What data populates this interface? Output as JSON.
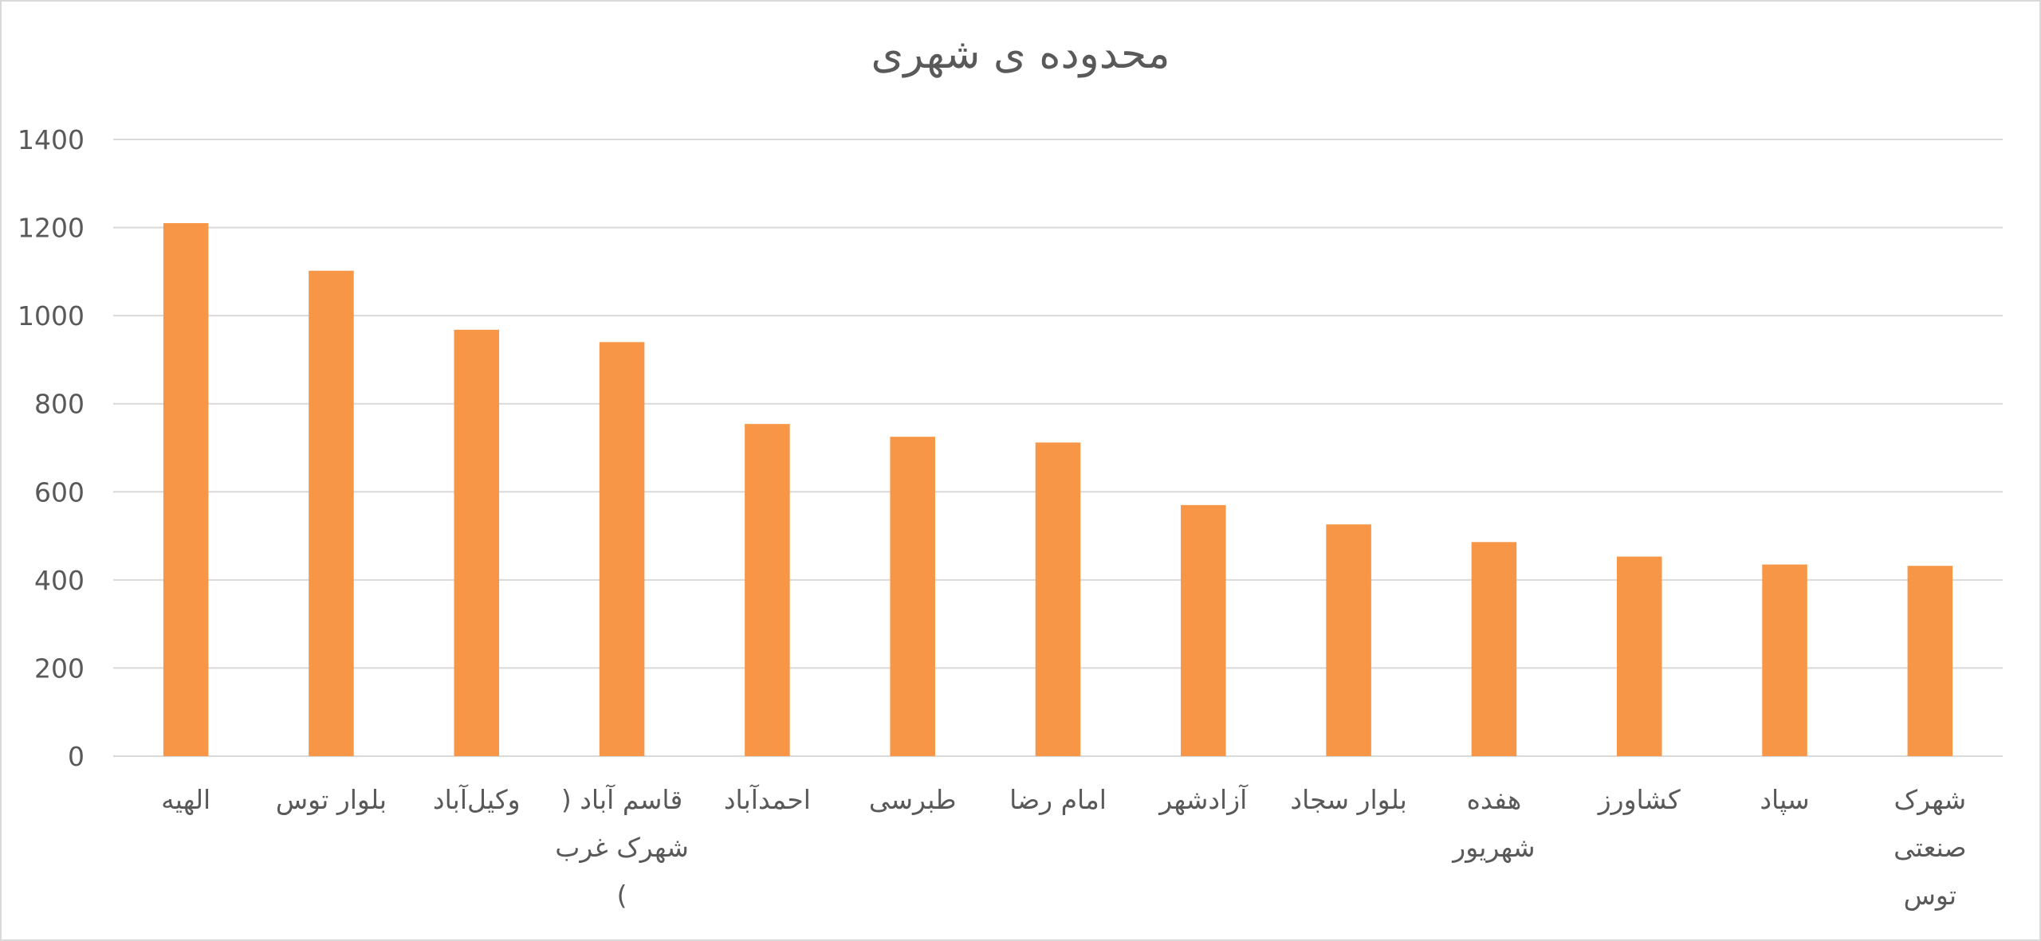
{
  "chart_data": {
    "type": "bar",
    "title": "محدوده ی شهری",
    "xlabel": "",
    "ylabel": "",
    "ylim": [
      0,
      1400
    ],
    "yticks": [
      0,
      200,
      400,
      600,
      800,
      1000,
      1200,
      1400
    ],
    "grid": true,
    "legend": "none",
    "bar_color": "#F79646",
    "categories": [
      "الهیه",
      "بلوار توس",
      "وکیل‌آباد",
      "قاسم آباد ( شهرک غرب )",
      "احمدآباد",
      "طبرسی",
      "امام رضا",
      "آزادشهر",
      "بلوار سجاد",
      "هفده شهریور",
      "کشاورز",
      "سپاد",
      "شهرک صنعتی توس"
    ],
    "category_label_lines": [
      [
        "الهیه"
      ],
      [
        "بلوار توس"
      ],
      [
        "وکیل‌آباد"
      ],
      [
        "قاسم آباد (",
        "شهرک غرب",
        ")"
      ],
      [
        "احمدآباد"
      ],
      [
        "طبرسی"
      ],
      [
        "امام رضا"
      ],
      [
        "آزادشهر"
      ],
      [
        "بلوار سجاد"
      ],
      [
        "هفده",
        "شهریور"
      ],
      [
        "کشاورز"
      ],
      [
        "سپاد"
      ],
      [
        "شهرک",
        "صنعتی",
        "توس"
      ]
    ],
    "values": [
      1210,
      1102,
      968,
      940,
      754,
      725,
      712,
      570,
      526,
      486,
      453,
      435,
      432
    ]
  }
}
